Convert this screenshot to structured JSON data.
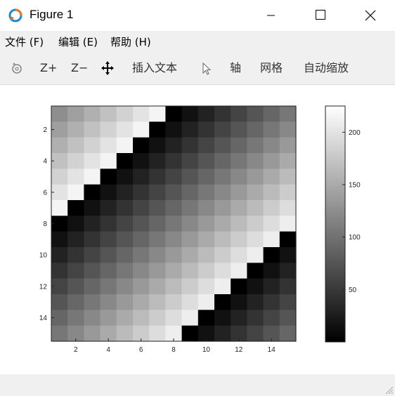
{
  "window": {
    "title": "Figure 1"
  },
  "menu": {
    "items": [
      "文件 (F)",
      "编辑 (E)",
      "帮助 (H)"
    ]
  },
  "toolbar": {
    "zoom_in": "Z+",
    "zoom_out": "Z−",
    "insert_text": "插入文本",
    "axis": "轴",
    "grid": "网格",
    "auto_zoom": "自动缩放"
  },
  "chart_data": {
    "type": "heatmap",
    "colormap": "gray",
    "matrix": [
      [
        125,
        140,
        155,
        170,
        185,
        200,
        215,
        0,
        15,
        30,
        45,
        60,
        75,
        90,
        105
      ],
      [
        140,
        155,
        170,
        185,
        200,
        215,
        0,
        15,
        30,
        45,
        60,
        75,
        90,
        105,
        120
      ],
      [
        155,
        170,
        185,
        200,
        215,
        0,
        15,
        30,
        45,
        60,
        75,
        90,
        105,
        120,
        135
      ],
      [
        170,
        185,
        200,
        215,
        0,
        15,
        30,
        45,
        60,
        75,
        90,
        105,
        120,
        135,
        150
      ],
      [
        185,
        200,
        215,
        0,
        15,
        30,
        45,
        60,
        75,
        90,
        105,
        120,
        135,
        150,
        165
      ],
      [
        200,
        215,
        0,
        15,
        30,
        45,
        60,
        75,
        90,
        105,
        120,
        135,
        150,
        165,
        180
      ],
      [
        215,
        0,
        15,
        30,
        45,
        60,
        75,
        90,
        105,
        120,
        135,
        150,
        165,
        180,
        195
      ],
      [
        0,
        15,
        30,
        45,
        60,
        75,
        90,
        105,
        120,
        135,
        150,
        165,
        180,
        195,
        210
      ],
      [
        15,
        30,
        45,
        60,
        75,
        90,
        105,
        120,
        135,
        150,
        165,
        180,
        195,
        210,
        0
      ],
      [
        30,
        45,
        60,
        75,
        90,
        105,
        120,
        135,
        150,
        165,
        180,
        195,
        210,
        0,
        15
      ],
      [
        45,
        60,
        75,
        90,
        105,
        120,
        135,
        150,
        165,
        180,
        195,
        210,
        0,
        15,
        30
      ],
      [
        60,
        75,
        90,
        105,
        120,
        135,
        150,
        165,
        180,
        195,
        210,
        0,
        15,
        30,
        45
      ],
      [
        75,
        90,
        105,
        120,
        135,
        150,
        165,
        180,
        195,
        210,
        0,
        15,
        30,
        45,
        60
      ],
      [
        90,
        105,
        120,
        135,
        150,
        165,
        180,
        195,
        210,
        0,
        15,
        30,
        45,
        60,
        75
      ],
      [
        105,
        120,
        135,
        150,
        165,
        180,
        195,
        210,
        0,
        15,
        30,
        45,
        60,
        75,
        90
      ]
    ],
    "x_ticks": [
      "2",
      "4",
      "6",
      "8",
      "10",
      "12",
      "14"
    ],
    "y_ticks": [
      "2",
      "4",
      "6",
      "8",
      "10",
      "12",
      "14"
    ],
    "colorbar": {
      "min": 0,
      "max": 225,
      "ticks": [
        "50",
        "100",
        "150",
        "200"
      ],
      "tick_values": [
        50,
        100,
        150,
        200
      ]
    }
  }
}
